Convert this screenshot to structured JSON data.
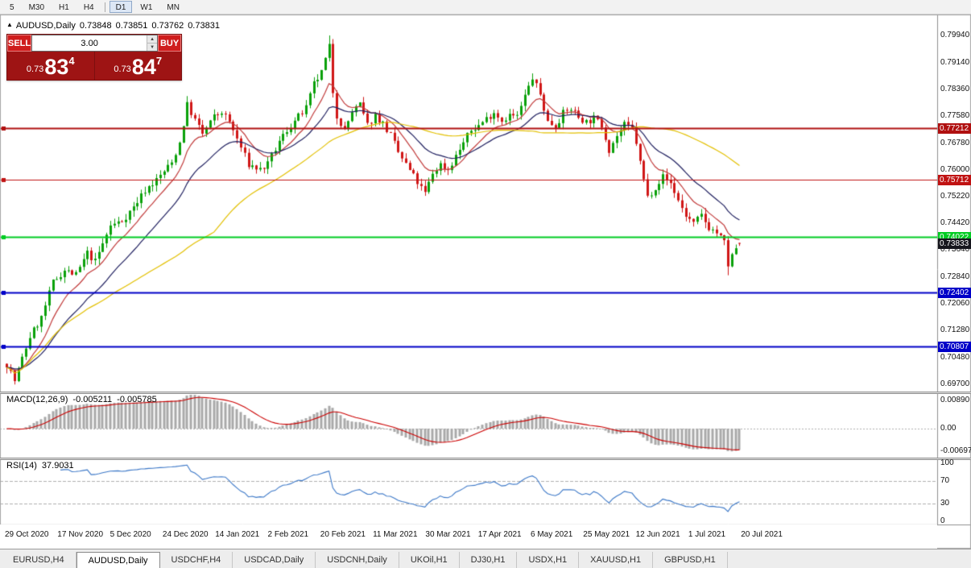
{
  "toolbar": {
    "timeframes": [
      {
        "label": "5",
        "active": false,
        "sep_after": false
      },
      {
        "label": "M30",
        "active": false,
        "sep_after": false
      },
      {
        "label": "H1",
        "active": false,
        "sep_after": false
      },
      {
        "label": "H4",
        "active": false,
        "sep_after": true
      },
      {
        "label": "D1",
        "active": true,
        "sep_after": false
      },
      {
        "label": "W1",
        "active": false,
        "sep_after": false
      },
      {
        "label": "MN",
        "active": false,
        "sep_after": false
      }
    ]
  },
  "chart_header": {
    "collapse_icon": "▲",
    "symbol": "AUDUSD,Daily",
    "open": "0.73848",
    "high": "0.73851",
    "low": "0.73762",
    "close": "0.73831"
  },
  "trade_panel": {
    "sell_label": "SELL",
    "buy_label": "BUY",
    "volume": "3.00",
    "spin_up_icon": "▲",
    "spin_down_icon": "▼",
    "sell_price": {
      "prefix": "0.73",
      "big": "83",
      "sup": "4"
    },
    "buy_price": {
      "prefix": "0.73",
      "big": "84",
      "sup": "7"
    }
  },
  "macd_panel": {
    "label": "MACD(12,26,9)",
    "main_value": "-0.005211",
    "signal_value": "-0.005785",
    "y_ticks": [
      {
        "v": 0.0089,
        "label": "0.00890"
      },
      {
        "v": 0,
        "label": "0.00"
      },
      {
        "v": -0.00697,
        "label": "-0.00697"
      }
    ]
  },
  "rsi_panel": {
    "label": "RSI(14)",
    "value": "37.9031",
    "levels": [
      70,
      30
    ],
    "y_ticks": [
      {
        "v": 100,
        "label": "100"
      },
      {
        "v": 70,
        "label": "70"
      },
      {
        "v": 30,
        "label": "30"
      },
      {
        "v": 0,
        "label": "0"
      }
    ]
  },
  "tabs": [
    {
      "label": "EURUSD,H4",
      "active": false
    },
    {
      "label": "AUDUSD,Daily",
      "active": true
    },
    {
      "label": "USDCHF,H4",
      "active": false
    },
    {
      "label": "USDCAD,Daily",
      "active": false
    },
    {
      "label": "USDCNH,Daily",
      "active": false
    },
    {
      "label": "UKOil,H1",
      "active": false
    },
    {
      "label": "DJ30,H1",
      "active": false
    },
    {
      "label": "USDX,H1",
      "active": false
    },
    {
      "label": "XAUUSD,H1",
      "active": false
    },
    {
      "label": "GBPUSD,H1",
      "active": false
    }
  ],
  "chart_data": {
    "type": "candlestick",
    "symbol": "AUDUSD",
    "timeframe": "Daily",
    "num_candles": 192,
    "chart_shift_fraction": 0.79,
    "seed": 7,
    "y_range": [
      0.6958,
      0.8046
    ],
    "y_ticks": [
      {
        "v": 0.7994,
        "label": "0.79940"
      },
      {
        "v": 0.7914,
        "label": "0.79140"
      },
      {
        "v": 0.7836,
        "label": "0.78360"
      },
      {
        "v": 0.7758,
        "label": "0.77580"
      },
      {
        "v": 0.7678,
        "label": "0.76780"
      },
      {
        "v": 0.76,
        "label": "0.76000"
      },
      {
        "v": 0.7522,
        "label": "0.75220"
      },
      {
        "v": 0.7442,
        "label": "0.74420"
      },
      {
        "v": 0.7364,
        "label": "0.73640"
      },
      {
        "v": 0.7284,
        "label": "0.72840"
      },
      {
        "v": 0.7206,
        "label": "0.72060"
      },
      {
        "v": 0.7128,
        "label": "0.71280"
      },
      {
        "v": 0.7048,
        "label": "0.70480"
      },
      {
        "v": 0.697,
        "label": "0.69700"
      }
    ],
    "x_labels": [
      "29 Oct 2020",
      "17 Nov 2020",
      "5 Dec 2020",
      "24 Dec 2020",
      "14 Jan 2021",
      "2 Feb 2021",
      "20 Feb 2021",
      "11 Mar 2021",
      "30 Mar 2021",
      "17 Apr 2021",
      "6 May 2021",
      "25 May 2021",
      "12 Jun 2021",
      "1 Jul 2021",
      "20 Jul 2021"
    ],
    "h_lines": [
      {
        "value": 0.77212,
        "label": "0.77212",
        "color": "#b01010",
        "width": 2,
        "text_color": "#fff"
      },
      {
        "value": 0.75712,
        "label": "0.75712",
        "color": "#c01212",
        "width": 1,
        "text_color": "#fff"
      },
      {
        "value": 0.74022,
        "label": "0.74022",
        "color": "#00cc22",
        "width": 2,
        "text_color": "#fff"
      },
      {
        "value": 0.72402,
        "label": "0.72402",
        "color": "#0000c8",
        "width": 2,
        "text_color": "#fff"
      },
      {
        "value": 0.70807,
        "label": "0.70807",
        "color": "#0000c8",
        "width": 2,
        "text_color": "#fff"
      }
    ],
    "current_price": {
      "value": 0.73833,
      "label": "0.73833",
      "bg": "#16161d"
    },
    "up_color": "#0aa10a",
    "down_color": "#d01616",
    "moving_averages": [
      {
        "type": "ema",
        "period": 10,
        "color": "#c23b3b"
      },
      {
        "type": "ema",
        "period": 22,
        "color": "#202060"
      },
      {
        "type": "sma",
        "period": 55,
        "color": "#e3c000"
      }
    ],
    "macd": {
      "fast": 12,
      "slow": 26,
      "signal": 9,
      "histogram_color": "#a8a8a8",
      "signal_color": "#cc0000",
      "range": [
        -0.008,
        0.0098
      ]
    },
    "rsi": {
      "period": 14,
      "color": "#3c78c8"
    },
    "price_anchors": [
      [
        0,
        0.703
      ],
      [
        2,
        0.698
      ],
      [
        4,
        0.7045
      ],
      [
        6,
        0.711
      ],
      [
        9,
        0.7165
      ],
      [
        12,
        0.727
      ],
      [
        15,
        0.7305
      ],
      [
        18,
        0.729
      ],
      [
        21,
        0.7355
      ],
      [
        23,
        0.733
      ],
      [
        27,
        0.7435
      ],
      [
        30,
        0.745
      ],
      [
        33,
        0.749
      ],
      [
        36,
        0.754
      ],
      [
        39,
        0.757
      ],
      [
        41,
        0.7595
      ],
      [
        43,
        0.762
      ],
      [
        45,
        0.768
      ],
      [
        47,
        0.779
      ],
      [
        49,
        0.7745
      ],
      [
        51,
        0.7705
      ],
      [
        54,
        0.7755
      ],
      [
        56,
        0.777
      ],
      [
        58,
        0.774
      ],
      [
        60,
        0.769
      ],
      [
        63,
        0.7615
      ],
      [
        66,
        0.76
      ],
      [
        68,
        0.7615
      ],
      [
        70,
        0.766
      ],
      [
        72,
        0.77
      ],
      [
        74,
        0.773
      ],
      [
        76,
        0.7755
      ],
      [
        78,
        0.778
      ],
      [
        80,
        0.785
      ],
      [
        82,
        0.7885
      ],
      [
        84,
        0.796
      ],
      [
        85,
        0.783
      ],
      [
        86,
        0.776
      ],
      [
        88,
        0.7715
      ],
      [
        90,
        0.777
      ],
      [
        92,
        0.779
      ],
      [
        94,
        0.773
      ],
      [
        96,
        0.776
      ],
      [
        98,
        0.7735
      ],
      [
        100,
        0.77
      ],
      [
        102,
        0.765
      ],
      [
        104,
        0.7615
      ],
      [
        106,
        0.758
      ],
      [
        108,
        0.7545
      ],
      [
        109,
        0.753
      ],
      [
        111,
        0.759
      ],
      [
        113,
        0.7615
      ],
      [
        115,
        0.76
      ],
      [
        117,
        0.764
      ],
      [
        119,
        0.768
      ],
      [
        121,
        0.7715
      ],
      [
        123,
        0.773
      ],
      [
        125,
        0.775
      ],
      [
        127,
        0.777
      ],
      [
        129,
        0.7745
      ],
      [
        131,
        0.776
      ],
      [
        133,
        0.7755
      ],
      [
        135,
        0.7815
      ],
      [
        137,
        0.787
      ],
      [
        139,
        0.782
      ],
      [
        141,
        0.774
      ],
      [
        143,
        0.773
      ],
      [
        145,
        0.7765
      ],
      [
        147,
        0.778
      ],
      [
        149,
        0.7755
      ],
      [
        151,
        0.774
      ],
      [
        153,
        0.775
      ],
      [
        155,
        0.773
      ],
      [
        157,
        0.766
      ],
      [
        159,
        0.77
      ],
      [
        161,
        0.773
      ],
      [
        163,
        0.772
      ],
      [
        164,
        0.768
      ],
      [
        165,
        0.762
      ],
      [
        167,
        0.752
      ],
      [
        169,
        0.755
      ],
      [
        171,
        0.758
      ],
      [
        173,
        0.756
      ],
      [
        175,
        0.751
      ],
      [
        177,
        0.7465
      ],
      [
        179,
        0.744
      ],
      [
        181,
        0.7465
      ],
      [
        183,
        0.743
      ],
      [
        185,
        0.7415
      ],
      [
        187,
        0.7385
      ],
      [
        188,
        0.732
      ],
      [
        189,
        0.7345
      ],
      [
        190,
        0.737
      ],
      [
        191,
        0.7383
      ]
    ],
    "candle_overrides": {
      "84": {
        "h": 0.7994
      },
      "188": {
        "l": 0.729
      },
      "191": {
        "o": 0.73848,
        "h": 0.73851,
        "l": 0.73762,
        "c": 0.73831
      }
    }
  }
}
